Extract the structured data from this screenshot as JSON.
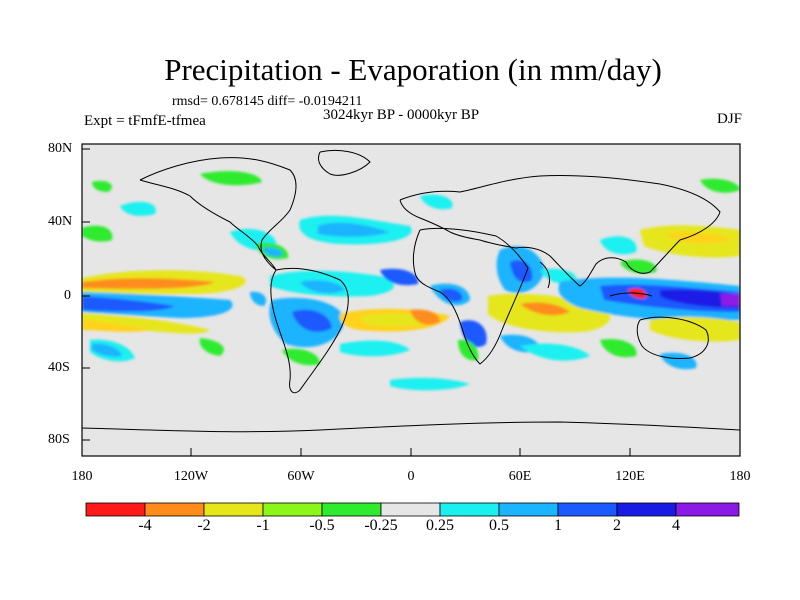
{
  "title": "Precipitation - Evaporation (in mm/day)",
  "stats": "rmsd= 0.678145 diff= -0.0194211",
  "period": "3024kyr BP - 0000kyr BP",
  "experiment": "Expt = tFmfE-tfmea",
  "season": "DJF",
  "axes": {
    "y_ticks": [
      "80N",
      "40N",
      "0",
      "40S",
      "80S"
    ],
    "x_ticks": [
      "180",
      "120W",
      "60W",
      "0",
      "60E",
      "120E",
      "180"
    ]
  },
  "colorbar": {
    "labels": [
      "-4",
      "-2",
      "-1",
      "-0.5",
      "-0.25",
      "0.25",
      "0.5",
      "1",
      "2",
      "4"
    ],
    "colors": [
      "#ff1a1a",
      "#ff8c1a",
      "#e6e61a",
      "#ffd21a",
      "#8cf51a",
      "#2eeb2e",
      "#e6e6e6",
      "#1af0f0",
      "#1ab4ff",
      "#1a5aff",
      "#1a1ae6",
      "#8c1ae6"
    ]
  },
  "colors": {
    "land_ocean_background": "#e6e6e6",
    "coastline": "#000000"
  }
}
